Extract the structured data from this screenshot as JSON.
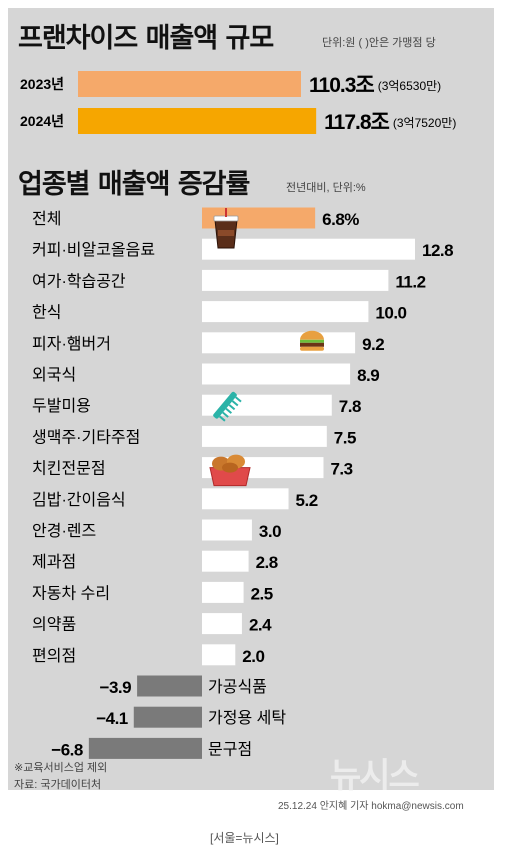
{
  "colors": {
    "panel": "#d6d6d6",
    "bar_2023": "#f5a96a",
    "bar_2024": "#f6a600",
    "bar_total": "#f5a96a",
    "bar_positive": "#ffffff",
    "bar_negative": "#7a7a7a"
  },
  "header": {
    "title": "프랜차이즈 매출액 규모",
    "note": "단위:원 ( )안은 가맹점 당"
  },
  "section2": {
    "title": "업종별 매출액 증감률",
    "note": "전년대비, 단위:%"
  },
  "footer": {
    "note": "※교육서비스업 제외",
    "source": "자료: 국가데이터처",
    "credit": "25.12.24 안지혜 기자 hokma@newsis.com",
    "logo": "뉴시스",
    "caption": "[서울=뉴시스]"
  },
  "chart_data": [
    {
      "type": "bar",
      "title": "프랜차이즈 매출액 규모",
      "categories": [
        "2023년",
        "2024년"
      ],
      "values": [
        110.3,
        117.8
      ],
      "value_labels": [
        "110.3조",
        "117.8조"
      ],
      "sub_labels": [
        "(3억6530만)",
        "(3억7520만)"
      ]
    },
    {
      "type": "bar",
      "title": "업종별 매출액 증감률",
      "categories": [
        "전체",
        "커피·비알코올음료",
        "여가·학습공간",
        "한식",
        "피자·햄버거",
        "외국식",
        "두발미용",
        "생맥주·기타주점",
        "치킨전문점",
        "김밥·간이음식",
        "안경·렌즈",
        "제과점",
        "자동차 수리",
        "의약품",
        "편의점",
        "가공식품",
        "가정용 세탁",
        "문구점"
      ],
      "values": [
        6.8,
        12.8,
        11.2,
        10.0,
        9.2,
        8.9,
        7.8,
        7.5,
        7.3,
        5.2,
        3.0,
        2.8,
        2.5,
        2.4,
        2.0,
        -3.9,
        -4.1,
        -6.8
      ],
      "value_labels": [
        "6.8%",
        "12.8",
        "11.2",
        "10.0",
        "9.2",
        "8.9",
        "7.8",
        "7.5",
        "7.3",
        "5.2",
        "3.0",
        "2.8",
        "2.5",
        "2.4",
        "2.0",
        "−3.9",
        "−4.1",
        "−6.8"
      ],
      "icons": [
        "coffee-cup-icon",
        "burger-icon",
        "comb-icon",
        "fried-chicken-icon"
      ]
    }
  ]
}
